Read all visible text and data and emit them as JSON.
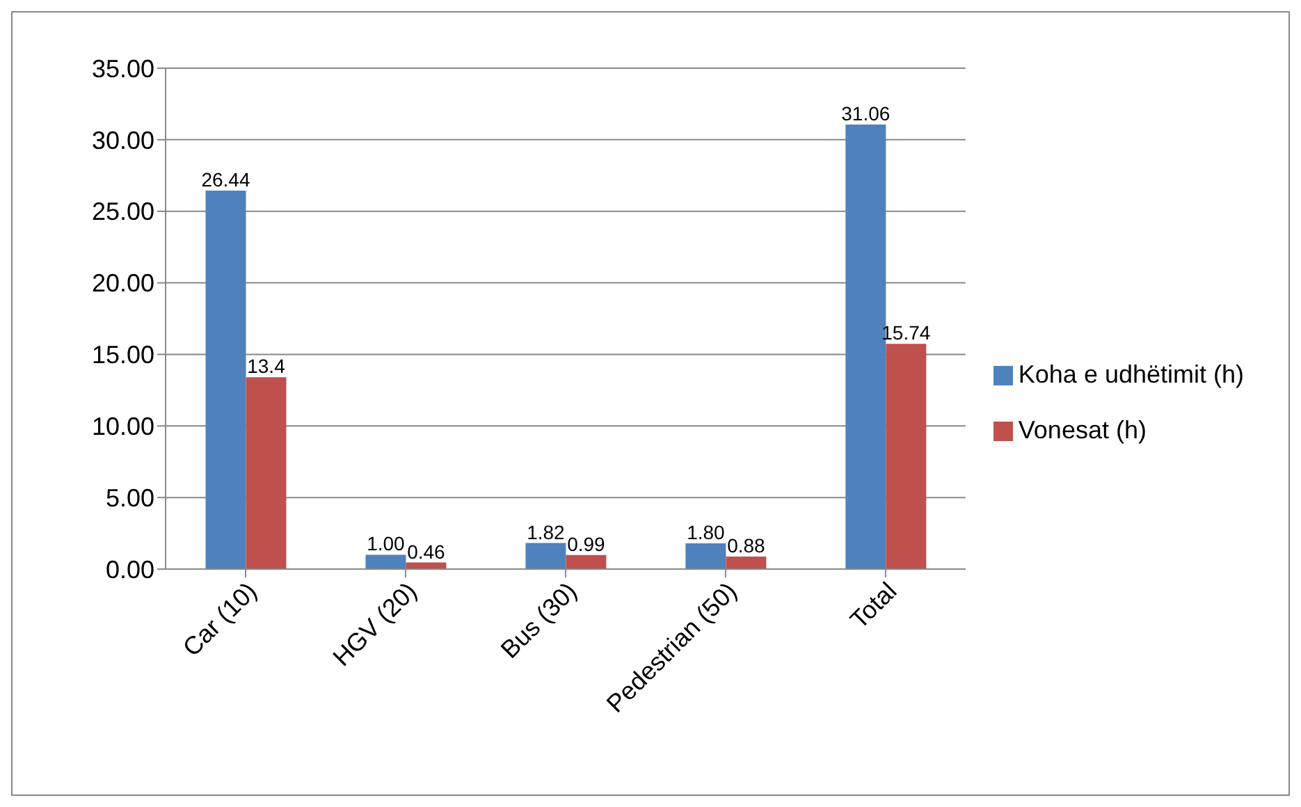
{
  "chart_data": {
    "type": "bar",
    "categories": [
      "Car (10)",
      "HGV (20)",
      "Bus (30)",
      "Pedestrian (50)",
      "Total"
    ],
    "series": [
      {
        "name": "Koha e udhëtimit (h)",
        "color": "#4f81bd",
        "values": [
          26.44,
          1.0,
          1.82,
          1.8,
          31.06
        ],
        "value_labels": [
          "26.44",
          "1.00",
          "1.82",
          "1.80",
          "31.06"
        ]
      },
      {
        "name": "Vonesat (h)",
        "color": "#c0504d",
        "values": [
          13.4,
          0.46,
          0.99,
          0.88,
          15.74
        ],
        "value_labels": [
          "13.4",
          "0.46",
          "0.99",
          "0.88",
          "15.74"
        ]
      }
    ],
    "ylim": [
      0,
      35
    ],
    "yticks": [
      {
        "value": 0,
        "label": "0.00"
      },
      {
        "value": 5,
        "label": "5.00"
      },
      {
        "value": 10,
        "label": "10.00"
      },
      {
        "value": 15,
        "label": "15.00"
      },
      {
        "value": 20,
        "label": "20.00"
      },
      {
        "value": 25,
        "label": "25.00"
      },
      {
        "value": 30,
        "label": "30.00"
      },
      {
        "value": 35,
        "label": "35.00"
      }
    ],
    "grid": "y",
    "legend": "right"
  }
}
